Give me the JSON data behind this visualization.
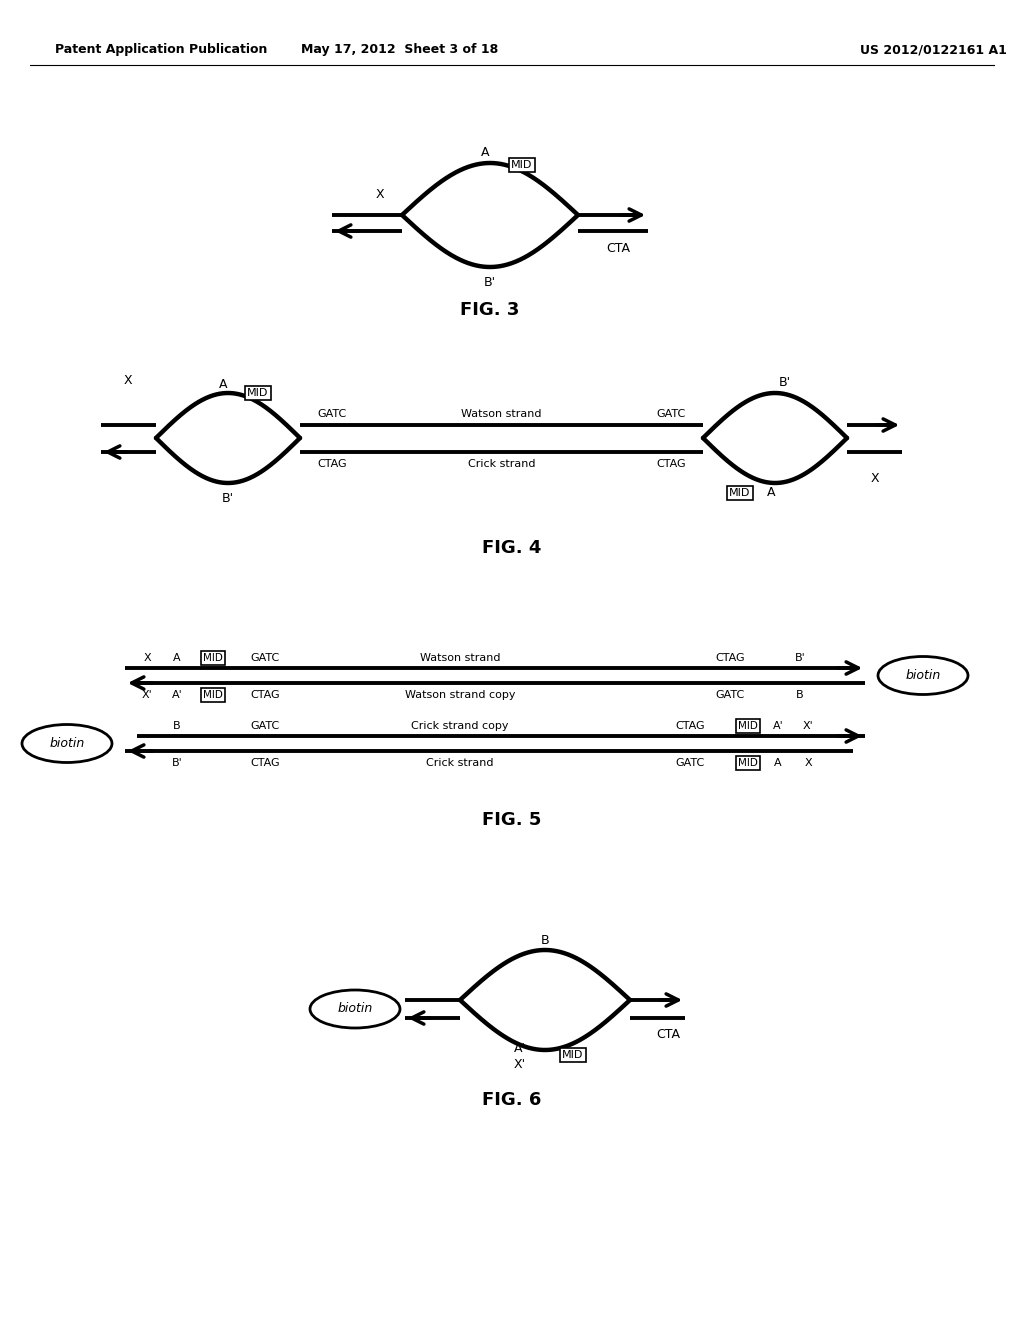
{
  "title_left": "Patent Application Publication",
  "title_mid": "May 17, 2012  Sheet 3 of 18",
  "title_right": "US 2012/0122161 A1",
  "fig3_label": "FIG. 3",
  "fig4_label": "FIG. 4",
  "fig5_label": "FIG. 5",
  "fig6_label": "FIG. 6",
  "bg_color": "#ffffff",
  "line_color": "#000000"
}
